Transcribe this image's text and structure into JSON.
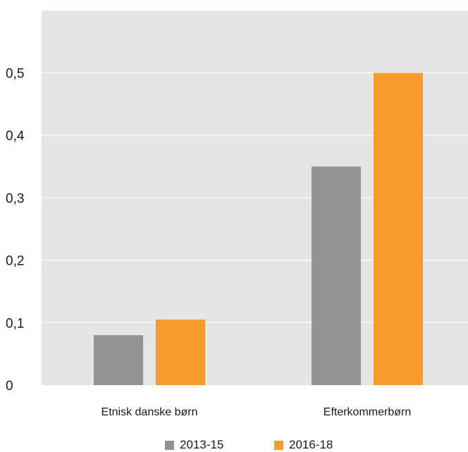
{
  "chart_data": {
    "type": "bar",
    "title": "",
    "xlabel": "",
    "ylabel": "",
    "categories": [
      "Etnisk danske børn",
      "Efterkommerbørn"
    ],
    "series": [
      {
        "name": "2013-15",
        "values": [
          0.08,
          0.35
        ],
        "color": "#939393"
      },
      {
        "name": "2016-18",
        "values": [
          0.105,
          0.5
        ],
        "color": "#f89b2c"
      }
    ],
    "yticks": [
      0,
      0.1,
      0.2,
      0.3,
      0.4,
      0.5
    ],
    "ytick_labels": [
      "0",
      "0,1",
      "0,2",
      "0,3",
      "0,4",
      "0,5"
    ],
    "ylim": [
      0,
      0.6
    ],
    "grid": true,
    "legend_position": "bottom",
    "background_color": "#e5e5e5"
  }
}
